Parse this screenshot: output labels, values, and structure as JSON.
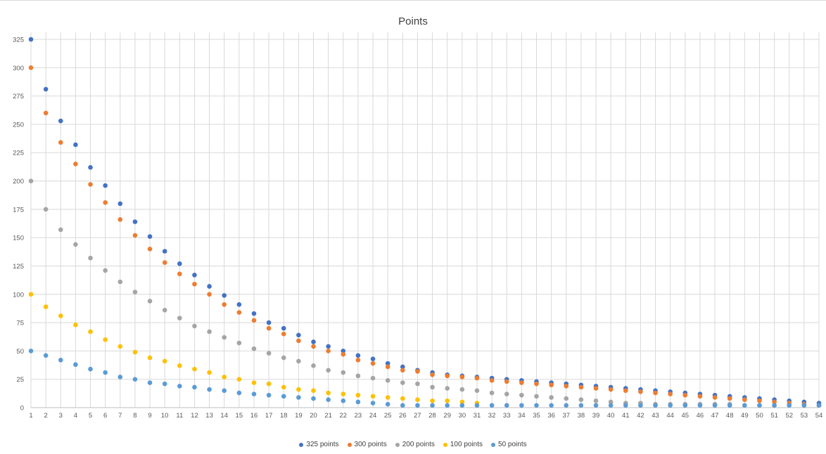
{
  "chart_data": {
    "type": "scatter",
    "title": "Points",
    "xlabel": "",
    "ylabel": "",
    "xlim": [
      1,
      54
    ],
    "ylim": [
      0,
      325
    ],
    "yticks": [
      0,
      25,
      50,
      75,
      100,
      125,
      150,
      175,
      200,
      225,
      250,
      275,
      300,
      325
    ],
    "grid": true,
    "legend": "bottom",
    "x": [
      1,
      2,
      3,
      4,
      5,
      6,
      7,
      8,
      9,
      10,
      11,
      12,
      13,
      14,
      15,
      16,
      17,
      18,
      19,
      20,
      21,
      22,
      23,
      24,
      25,
      26,
      27,
      28,
      29,
      30,
      31,
      32,
      33,
      34,
      35,
      36,
      37,
      38,
      39,
      40,
      41,
      42,
      43,
      44,
      45,
      46,
      47,
      48,
      49,
      50,
      51,
      52,
      53,
      54
    ],
    "series": [
      {
        "name": "325 points",
        "color": "#4472C4",
        "values": [
          325,
          281,
          253,
          232,
          212,
          196,
          180,
          164,
          151,
          138,
          127,
          117,
          107,
          99,
          91,
          83,
          75,
          70,
          64,
          58,
          54,
          50,
          46,
          43,
          39,
          36,
          33,
          31,
          29,
          28,
          27,
          26,
          25,
          24,
          23,
          22,
          21,
          20,
          19,
          18,
          17,
          16,
          15,
          14,
          13,
          12,
          11,
          10,
          9,
          8,
          7,
          6,
          5,
          4
        ]
      },
      {
        "name": "300 points",
        "color": "#ED7D31",
        "values": [
          300,
          260,
          234,
          215,
          197,
          181,
          166,
          152,
          140,
          128,
          118,
          109,
          100,
          91,
          84,
          77,
          70,
          65,
          59,
          54,
          50,
          47,
          42,
          39,
          36,
          33,
          32,
          29,
          28,
          27,
          26,
          24,
          23,
          22,
          21,
          20,
          19,
          18,
          17,
          16,
          15,
          14,
          13,
          12,
          11,
          10,
          9,
          8,
          7,
          6,
          5,
          4,
          3,
          2
        ]
      },
      {
        "name": "200 points",
        "color": "#A5A5A5",
        "values": [
          200,
          175,
          157,
          144,
          132,
          121,
          111,
          102,
          94,
          86,
          79,
          72,
          67,
          62,
          57,
          52,
          48,
          44,
          41,
          37,
          33,
          31,
          28,
          26,
          24,
          22,
          21,
          18,
          17,
          16,
          15,
          13,
          12,
          11,
          10,
          9,
          8,
          7,
          6,
          5,
          4,
          4,
          3,
          3,
          3,
          3,
          3,
          3,
          2,
          2,
          2,
          2,
          2,
          2
        ]
      },
      {
        "name": "100 points",
        "color": "#FFC000",
        "values": [
          100,
          89,
          81,
          73,
          67,
          60,
          54,
          49,
          44,
          41,
          37,
          34,
          31,
          27,
          25,
          22,
          21,
          18,
          16,
          15,
          13,
          12,
          11,
          10,
          9,
          8,
          7,
          6,
          6,
          5,
          4,
          null,
          null,
          null,
          null,
          null,
          null,
          null,
          null,
          null,
          null,
          null,
          null,
          null,
          null,
          null,
          null,
          null,
          null,
          null,
          null,
          null,
          null,
          null
        ]
      },
      {
        "name": "50 points",
        "color": "#5B9BD5",
        "values": [
          50,
          46,
          42,
          38,
          34,
          31,
          27,
          25,
          22,
          21,
          19,
          18,
          16,
          15,
          13,
          12,
          11,
          10,
          9,
          8,
          7,
          6,
          5,
          4,
          3,
          2,
          2,
          2,
          2,
          2,
          2,
          2,
          2,
          2,
          2,
          2,
          2,
          2,
          2,
          2,
          2,
          2,
          2,
          2,
          2,
          2,
          2,
          2,
          2,
          2,
          2,
          2,
          2,
          2
        ]
      }
    ]
  }
}
